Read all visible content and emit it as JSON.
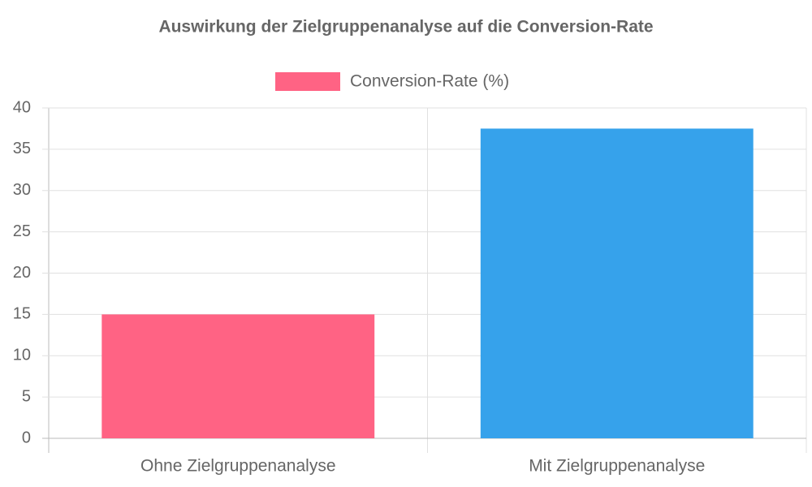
{
  "chart_data": {
    "type": "bar",
    "title": "Auswirkung der Zielgruppenanalyse auf die Conversion-Rate",
    "categories": [
      "Ohne Zielgruppenanalyse",
      "Mit Zielgruppenanalyse"
    ],
    "series": [
      {
        "name": "Conversion-Rate (%)",
        "values": [
          15,
          37.5
        ],
        "colors": [
          "#ff6384",
          "#36a2eb"
        ]
      }
    ],
    "ylim": [
      0,
      40
    ],
    "yticks": [
      0,
      5,
      10,
      15,
      20,
      25,
      30,
      35,
      40
    ],
    "grid": true,
    "legend": "top"
  }
}
